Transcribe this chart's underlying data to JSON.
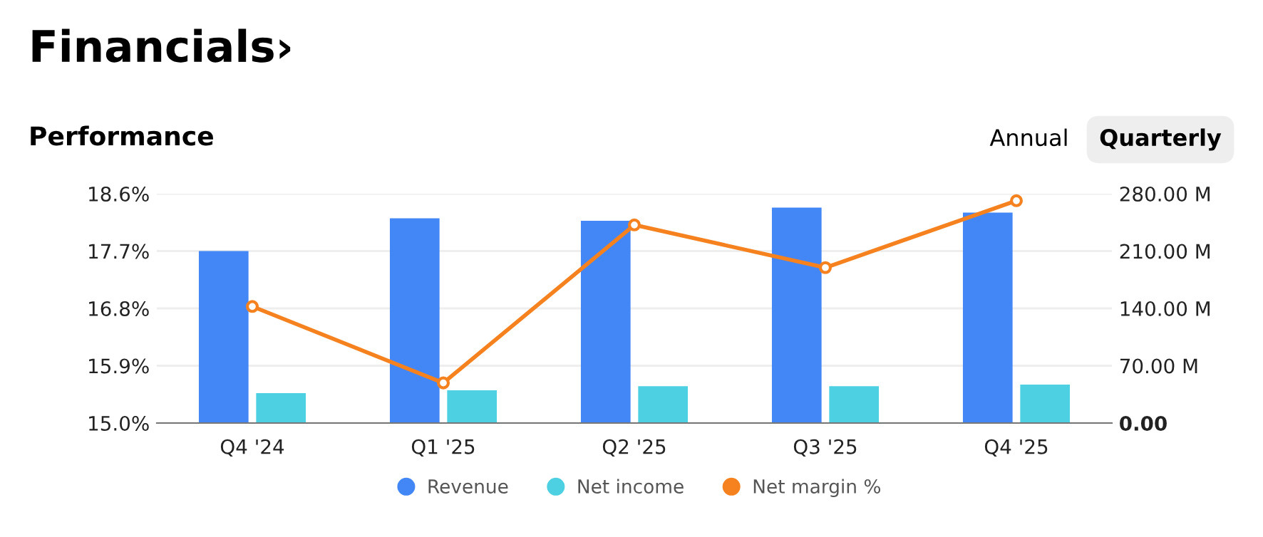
{
  "chart_data": {
    "type": "bar",
    "title": "Financials›",
    "subtitle": "Performance",
    "annotations": [
      "Annual",
      "Quarterly"
    ],
    "categories": [
      "Q4 '24",
      "Q1 '25",
      "Q2 '25",
      "Q3 '25",
      "Q4 '25"
    ],
    "series": [
      {
        "name": "Revenue",
        "color": "#4287f5",
        "axis": "y2",
        "values": [
          210,
          250,
          247,
          263,
          257
        ]
      },
      {
        "name": "Net income",
        "color": "#4dd0e1",
        "axis": "y2",
        "values": [
          36.5,
          40,
          45,
          45,
          47
        ]
      },
      {
        "name": "Net margin %",
        "color": "#f5821f",
        "type": "line",
        "axis": "y",
        "marker": "circle",
        "values": [
          16.83,
          15.63,
          18.11,
          17.44,
          18.49
        ]
      }
    ],
    "ylim": [
      15.0,
      18.6
    ],
    "yticks": [
      {
        "value": 15.0,
        "label": "15.0%"
      },
      {
        "value": 15.9,
        "label": "15.9%"
      },
      {
        "value": 16.8,
        "label": "16.8%"
      },
      {
        "value": 17.7,
        "label": "17.7%"
      },
      {
        "value": 18.6,
        "label": "18.6%"
      }
    ],
    "y2lim": [
      0,
      280
    ],
    "y2ticks": [
      {
        "value": 0,
        "label": "0.00"
      },
      {
        "value": 70,
        "label": "70.00 M"
      },
      {
        "value": 140,
        "label": "140.00 M"
      },
      {
        "value": 210,
        "label": "210.00 M"
      },
      {
        "value": 280,
        "label": "280.00 M"
      }
    ],
    "grid": "y",
    "legend": "bottom"
  }
}
